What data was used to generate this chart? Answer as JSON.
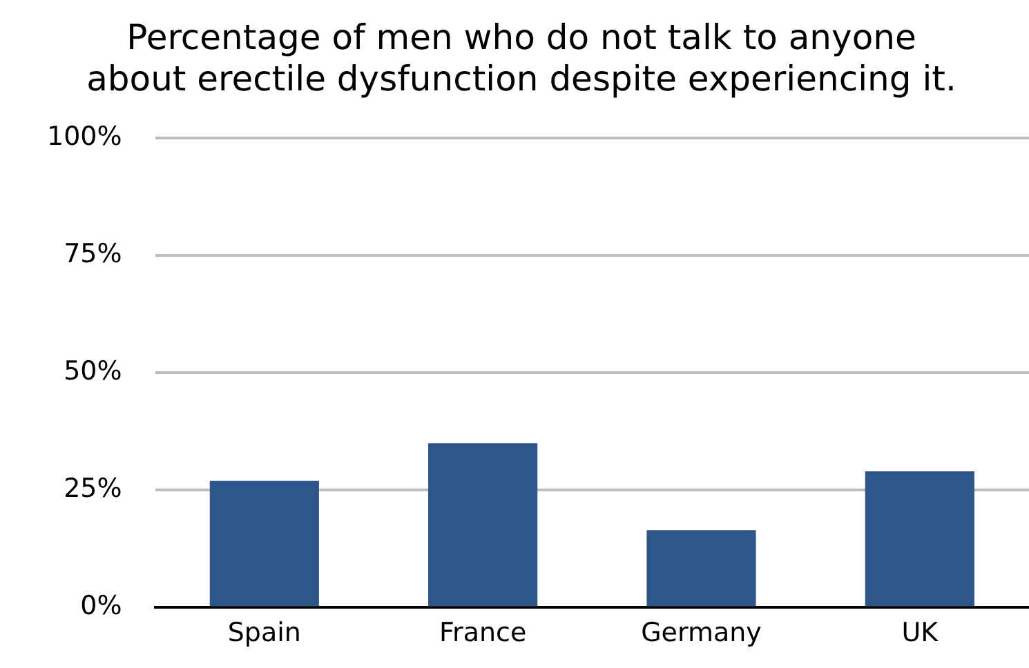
{
  "chart_data": {
    "type": "bar",
    "title": [
      "Percentage of men who do not talk to anyone",
      "about erectile dysfunction despite experiencing it."
    ],
    "categories": [
      "Spain",
      "France",
      "Germany",
      "UK"
    ],
    "values": [
      27,
      35,
      16.5,
      29
    ],
    "color": "#2e5689",
    "ylim": [
      0,
      100
    ],
    "yticks": [
      {
        "value": 0,
        "label": "0%"
      },
      {
        "value": 25,
        "label": "25%"
      },
      {
        "value": 50,
        "label": "50%"
      },
      {
        "value": 75,
        "label": "75%"
      },
      {
        "value": 100,
        "label": "100%"
      }
    ],
    "grid": "y",
    "legend": false
  }
}
